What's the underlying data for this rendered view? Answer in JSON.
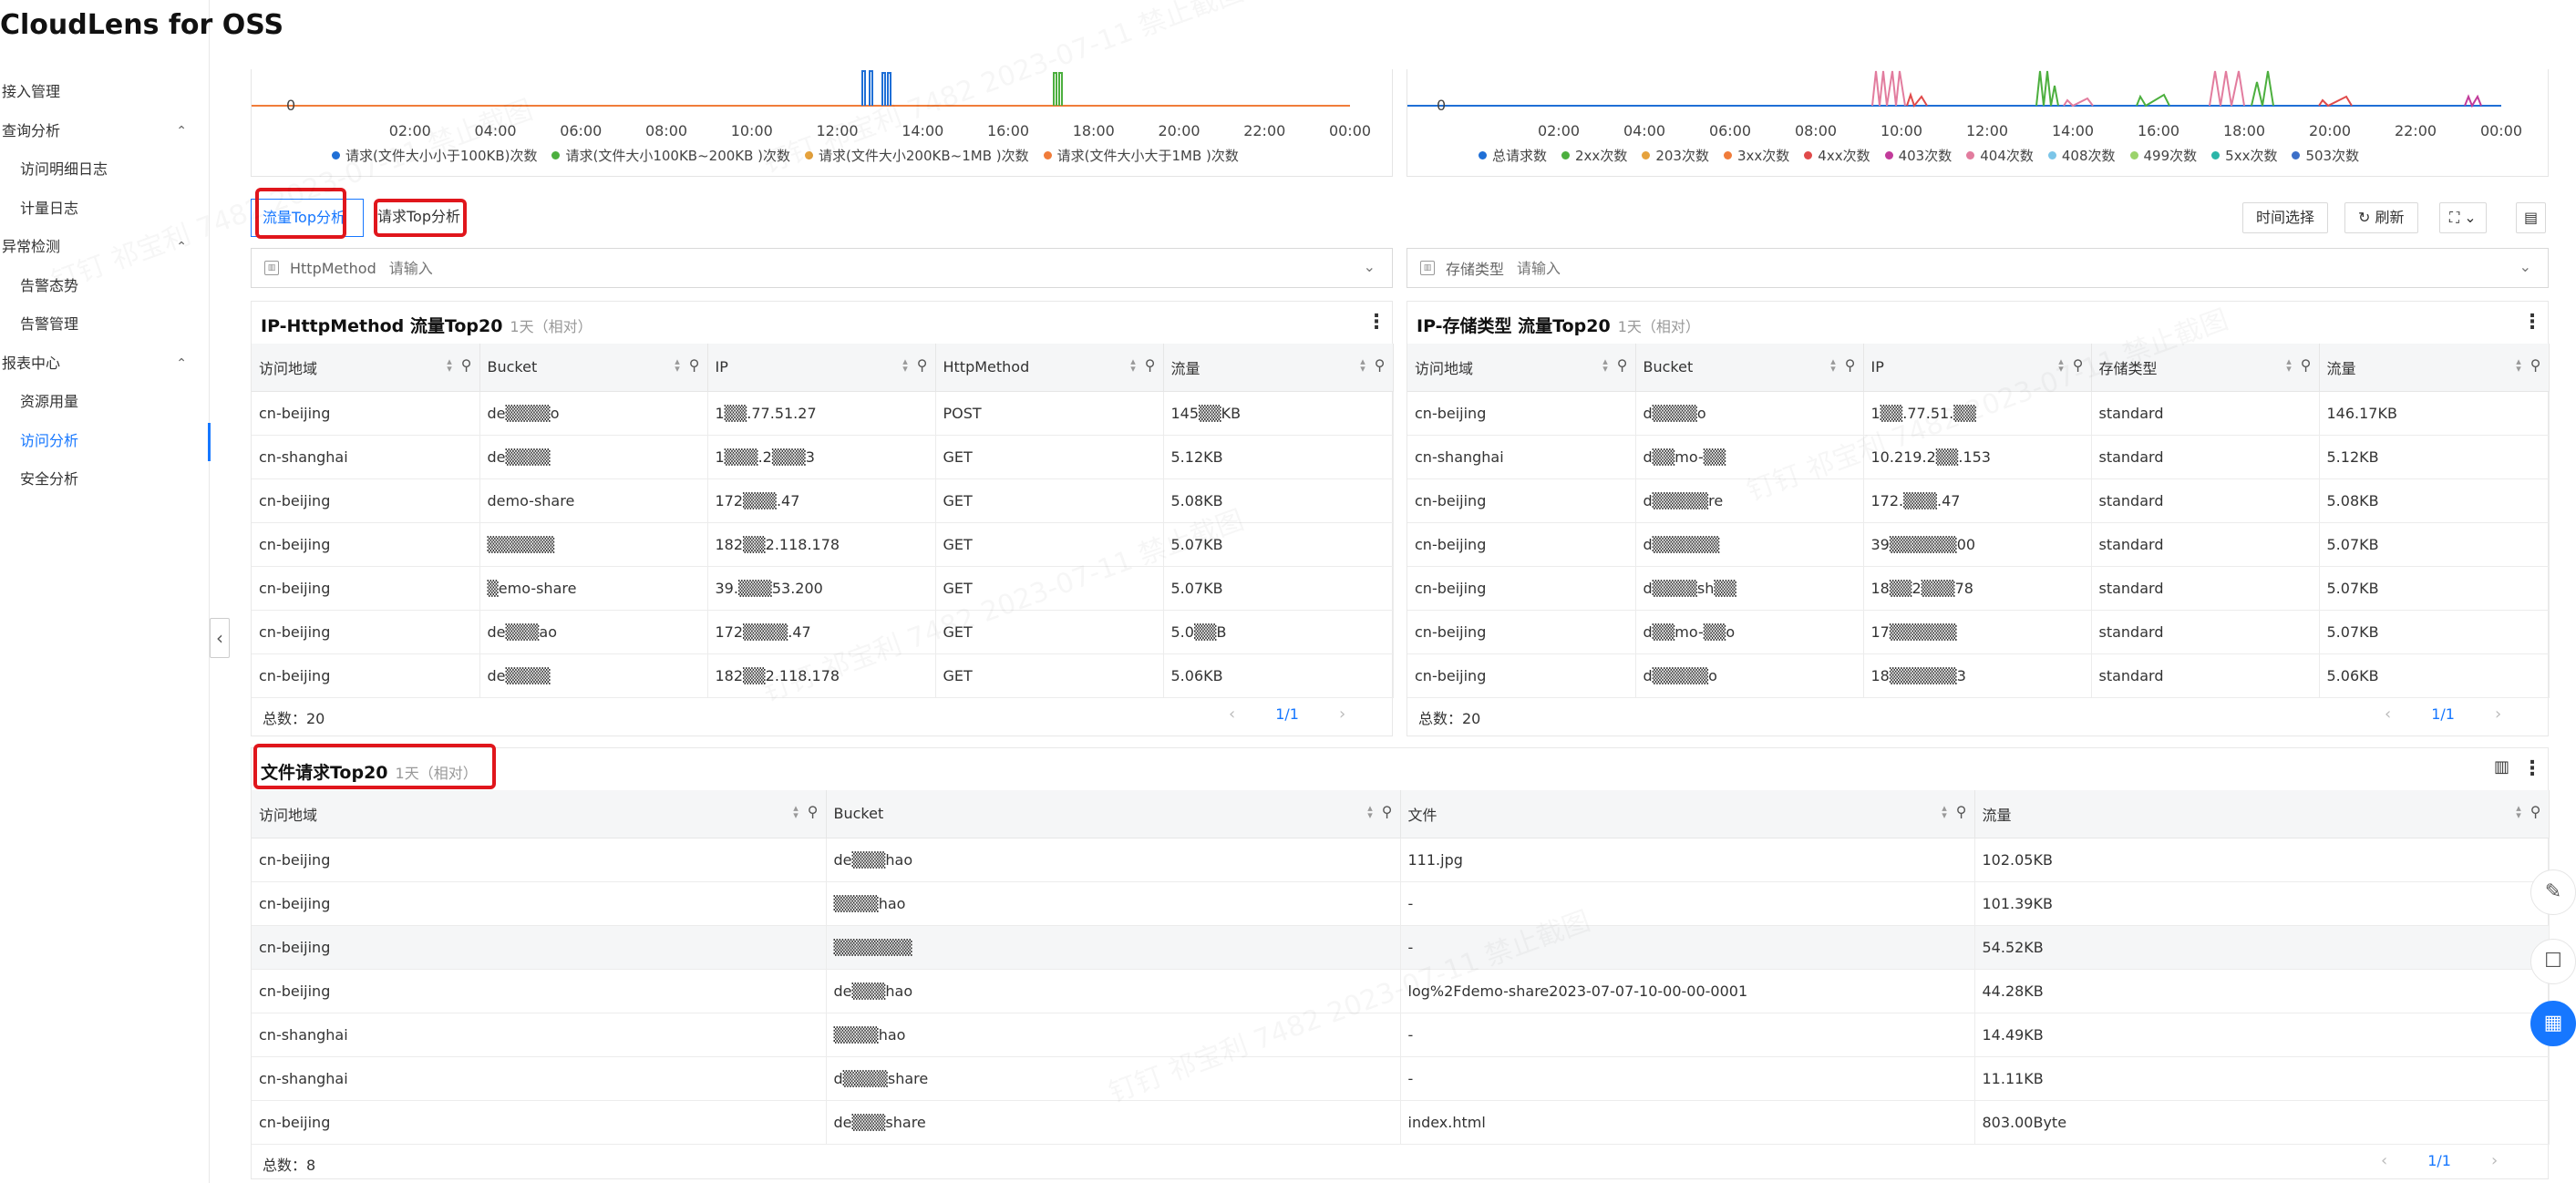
{
  "app": {
    "title": "CloudLens for OSS"
  },
  "sidebar": {
    "items": [
      {
        "label": "接入管理",
        "type": "group",
        "collapsible": false
      },
      {
        "label": "查询分析",
        "type": "group",
        "collapsible": true
      },
      {
        "label": "访问明细日志",
        "type": "child"
      },
      {
        "label": "计量日志",
        "type": "child"
      },
      {
        "label": "异常检测",
        "type": "group",
        "collapsible": true
      },
      {
        "label": "告警态势",
        "type": "child"
      },
      {
        "label": "告警管理",
        "type": "child"
      },
      {
        "label": "报表中心",
        "type": "group",
        "collapsible": true
      },
      {
        "label": "资源用量",
        "type": "child"
      },
      {
        "label": "访问分析",
        "type": "child",
        "active": true
      },
      {
        "label": "安全分析",
        "type": "child"
      }
    ]
  },
  "charts": {
    "left": {
      "zero_label": "0",
      "ticks": [
        "02:00",
        "04:00",
        "06:00",
        "08:00",
        "10:00",
        "12:00",
        "14:00",
        "16:00",
        "18:00",
        "20:00",
        "22:00",
        "00:00"
      ],
      "legend": [
        {
          "label": "请求(文件大小小于100KB)次数",
          "color": "#1f6fd6"
        },
        {
          "label": "请求(文件大小100KB~200KB )次数",
          "color": "#4caf3e"
        },
        {
          "label": "请求(文件大小200KB~1MB )次数",
          "color": "#e6a23c"
        },
        {
          "label": "请求(文件大小大于1MB )次数",
          "color": "#f07c3a"
        }
      ]
    },
    "right": {
      "zero_label": "0",
      "ticks": [
        "02:00",
        "04:00",
        "06:00",
        "08:00",
        "10:00",
        "12:00",
        "14:00",
        "16:00",
        "18:00",
        "20:00",
        "22:00",
        "00:00"
      ],
      "legend": [
        {
          "label": "总请求数",
          "color": "#1f6fd6"
        },
        {
          "label": "2xx次数",
          "color": "#4caf3e"
        },
        {
          "label": "203次数",
          "color": "#e6a23c"
        },
        {
          "label": "3xx次数",
          "color": "#f07c3a"
        },
        {
          "label": "4xx次数",
          "color": "#e04a4a"
        },
        {
          "label": "403次数",
          "color": "#c23b9a"
        },
        {
          "label": "404次数",
          "color": "#e27c9e"
        },
        {
          "label": "408次数",
          "color": "#7bc5e8"
        },
        {
          "label": "499次数",
          "color": "#9bd36b"
        },
        {
          "label": "5xx次数",
          "color": "#2bb5a8"
        },
        {
          "label": "503次数",
          "color": "#3c6fc8"
        }
      ]
    }
  },
  "tabs": [
    {
      "label": "流量Top分析",
      "active": true
    },
    {
      "label": "请求Top分析",
      "active": false
    }
  ],
  "toolbar": {
    "time_label": "时间选择",
    "refresh_label": "刷新"
  },
  "filters": {
    "left": {
      "label": "HttpMethod",
      "placeholder": "请输入"
    },
    "right": {
      "label": "存储类型",
      "placeholder": "请输入"
    }
  },
  "table_left": {
    "title": "IP-HttpMethod 流量Top20",
    "subtitle": "1天（相对）",
    "columns": [
      "访问地域",
      "Bucket",
      "IP",
      "HttpMethod",
      "流量"
    ],
    "rows": [
      [
        "cn-beijing",
        "de▒▒▒▒o",
        "1▒▒.77.51.27",
        "POST",
        "145▒▒KB"
      ],
      [
        "cn-shanghai",
        "de▒▒▒▒",
        "1▒▒▒.2▒▒▒3",
        "GET",
        "5.12KB"
      ],
      [
        "cn-beijing",
        "demo-share",
        "172▒▒▒.47",
        "GET",
        "5.08KB"
      ],
      [
        "cn-beijing",
        "▒▒▒▒▒▒",
        "182▒▒2.118.178",
        "GET",
        "5.07KB"
      ],
      [
        "cn-beijing",
        "▒emo-share",
        "39.▒▒▒53.200",
        "GET",
        "5.07KB"
      ],
      [
        "cn-beijing",
        "de▒▒▒ao",
        "172▒▒▒▒.47",
        "GET",
        "5.0▒▒B"
      ],
      [
        "cn-beijing",
        "de▒▒▒▒",
        "182▒▒2.118.178",
        "GET",
        "5.06KB"
      ]
    ],
    "total": "总数：20",
    "page": "1/1"
  },
  "table_right": {
    "title": "IP-存储类型 流量Top20",
    "subtitle": "1天（相对）",
    "columns": [
      "访问地域",
      "Bucket",
      "IP",
      "存储类型",
      "流量"
    ],
    "rows": [
      [
        "cn-beijing",
        "d▒▒▒▒o",
        "1▒▒.77.51.▒▒",
        "standard",
        "146.17KB"
      ],
      [
        "cn-shanghai",
        "d▒▒mo-▒▒",
        "10.219.2▒▒.153",
        "standard",
        "5.12KB"
      ],
      [
        "cn-beijing",
        "d▒▒▒▒▒re",
        "172.▒▒▒.47",
        "standard",
        "5.08KB"
      ],
      [
        "cn-beijing",
        "d▒▒▒▒▒▒",
        "39▒▒▒▒▒▒00",
        "standard",
        "5.07KB"
      ],
      [
        "cn-beijing",
        "d▒▒▒▒sh▒▒",
        "18▒▒2▒▒▒78",
        "standard",
        "5.07KB"
      ],
      [
        "cn-beijing",
        "d▒▒mo-▒▒o",
        "17▒▒▒▒▒▒",
        "standard",
        "5.07KB"
      ],
      [
        "cn-beijing",
        "d▒▒▒▒▒o",
        "18▒▒▒▒▒▒3",
        "standard",
        "5.06KB"
      ]
    ],
    "total": "总数：20",
    "page": "1/1"
  },
  "table_files": {
    "title": "文件请求Top20",
    "subtitle": "1天（相对）",
    "columns": [
      "访问地域",
      "Bucket",
      "文件",
      "流量"
    ],
    "rows": [
      [
        "cn-beijing",
        "de▒▒▒hao",
        "111.jpg",
        "102.05KB"
      ],
      [
        "cn-beijing",
        "▒▒▒▒hao",
        "-",
        "101.39KB"
      ],
      [
        "cn-beijing",
        "▒▒▒▒▒▒▒",
        "-",
        "54.52KB"
      ],
      [
        "cn-beijing",
        "de▒▒▒hao",
        "log%2Fdemo-share2023-07-07-10-00-00-0001",
        "44.28KB"
      ],
      [
        "cn-shanghai",
        "▒▒▒▒hao",
        "-",
        "14.49KB"
      ],
      [
        "cn-shanghai",
        "d▒▒▒▒share",
        "-",
        "11.11KB"
      ],
      [
        "cn-beijing",
        "de▒▒▒share",
        "index.html",
        "803.00Byte"
      ]
    ],
    "total": "总数：8",
    "page": "1/1"
  },
  "watermark": "钉钉 祁宝利 7482 2023-07-11 禁止截图"
}
